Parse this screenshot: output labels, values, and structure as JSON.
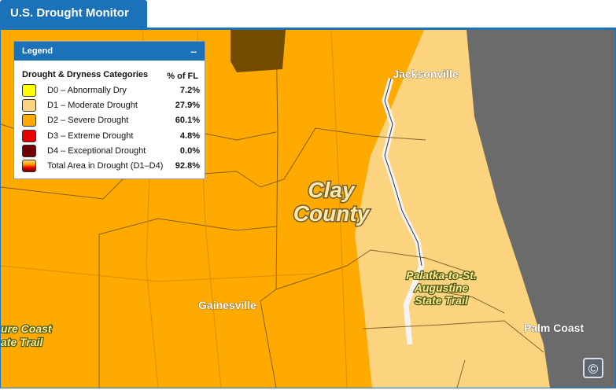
{
  "header": {
    "title": "U.S. Drought Monitor"
  },
  "legend": {
    "title": "Legend",
    "toggle": "–",
    "columns": [
      "Drought & Dryness Categories",
      "% of FL"
    ],
    "categories": [
      {
        "label": "D0 – Abnormally Dry",
        "percent": "7.2%",
        "color": "#ffff00"
      },
      {
        "label": "D1 – Moderate Drought",
        "percent": "27.9%",
        "color": "#fcd37f"
      },
      {
        "label": "D2 – Severe Drought",
        "percent": "60.1%",
        "color": "#ffaa00"
      },
      {
        "label": "D3 – Extreme Drought",
        "percent": "4.8%",
        "color": "#e60000"
      },
      {
        "label": "D4 – Exceptional Drought",
        "percent": "0.0%",
        "color": "#730000"
      }
    ],
    "total": {
      "label": "Total Area in Drought (D1–D4)",
      "percent": "92.8%"
    }
  },
  "map": {
    "labels": [
      "Jacksonville",
      "Clay",
      "County",
      "Palatka-to-St.",
      "Augustine",
      "State Trail",
      "Gainesville",
      "Palm Coast",
      "ure Coast",
      "ate Trail"
    ]
  },
  "copyright": "©"
}
